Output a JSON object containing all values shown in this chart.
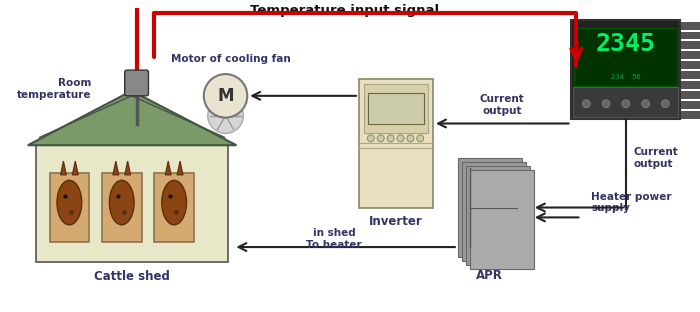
{
  "title": "Temperature input signal",
  "bg_color": "#ffffff",
  "labels": {
    "room_temp": "Room\ntemperature",
    "motor_label": "Motor of cooling fan",
    "motor_symbol": "M",
    "inverter": "Inverter",
    "current_output_top": "Current\noutput",
    "current_output_right": "Current\noutput",
    "cattle_shed": "Cattle shed",
    "in_shed": "in shed\nTo heater",
    "apr": "APR",
    "heater_power": "Heater power\nsupply"
  },
  "colors": {
    "red_arrow": "#cc0000",
    "black_arrow": "#222222",
    "shed_roof": "#7a9a6a",
    "shed_wall": "#e8e8c8",
    "shed_wall2": "#d4d4a0",
    "inverter_body": "#e8e0c0",
    "inverter_detail": "#c8c0a0",
    "motor_circle": "#e8e4d0",
    "motor_outline": "#888888",
    "label_color": "#333366",
    "window_frame": "#8b7355",
    "window_bg": "#d4aa70",
    "apr_color": "#888888",
    "heatsink_color": "#444444",
    "display_green": "#00aa44",
    "display_bg": "#003300"
  }
}
